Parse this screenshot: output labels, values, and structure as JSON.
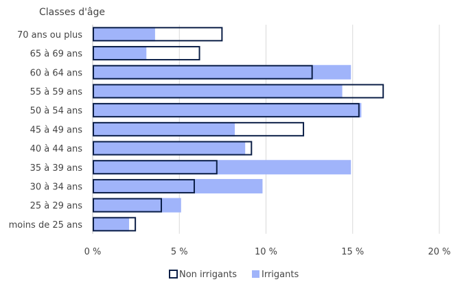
{
  "chart_data": {
    "type": "bar",
    "orientation": "horizontal",
    "ylabel": "Classes d'âge",
    "categories": [
      "70 ans ou plus",
      "65 à 69 ans",
      "60 à 64 ans",
      "55 à 59 ans",
      "50 à 54 ans",
      "45 à 49 ans",
      "40 à 44 ans",
      "35 à 39 ans",
      "30 à 34 ans",
      "25 à 29 ans",
      "moins de 25 ans"
    ],
    "series": [
      {
        "name": "Irrigants",
        "values": [
          3.6,
          3.1,
          14.9,
          14.4,
          15.5,
          8.2,
          8.8,
          14.9,
          9.8,
          5.1,
          2.1
        ],
        "color": "#a0b4fa"
      },
      {
        "name": "Non irrigants",
        "values": [
          7.5,
          6.2,
          12.7,
          16.8,
          15.4,
          12.2,
          9.2,
          7.2,
          5.9,
          4.0,
          2.5
        ],
        "color": "#0b1e46"
      }
    ],
    "xlim": [
      0,
      20
    ],
    "xticks": [
      "0 %",
      "5 %",
      "10 %",
      "15 %",
      "20 %"
    ],
    "grid": true,
    "legend_position": "bottom"
  },
  "legend": {
    "non_irrigants": "Non irrigants",
    "irrigants": "Irrigants"
  }
}
